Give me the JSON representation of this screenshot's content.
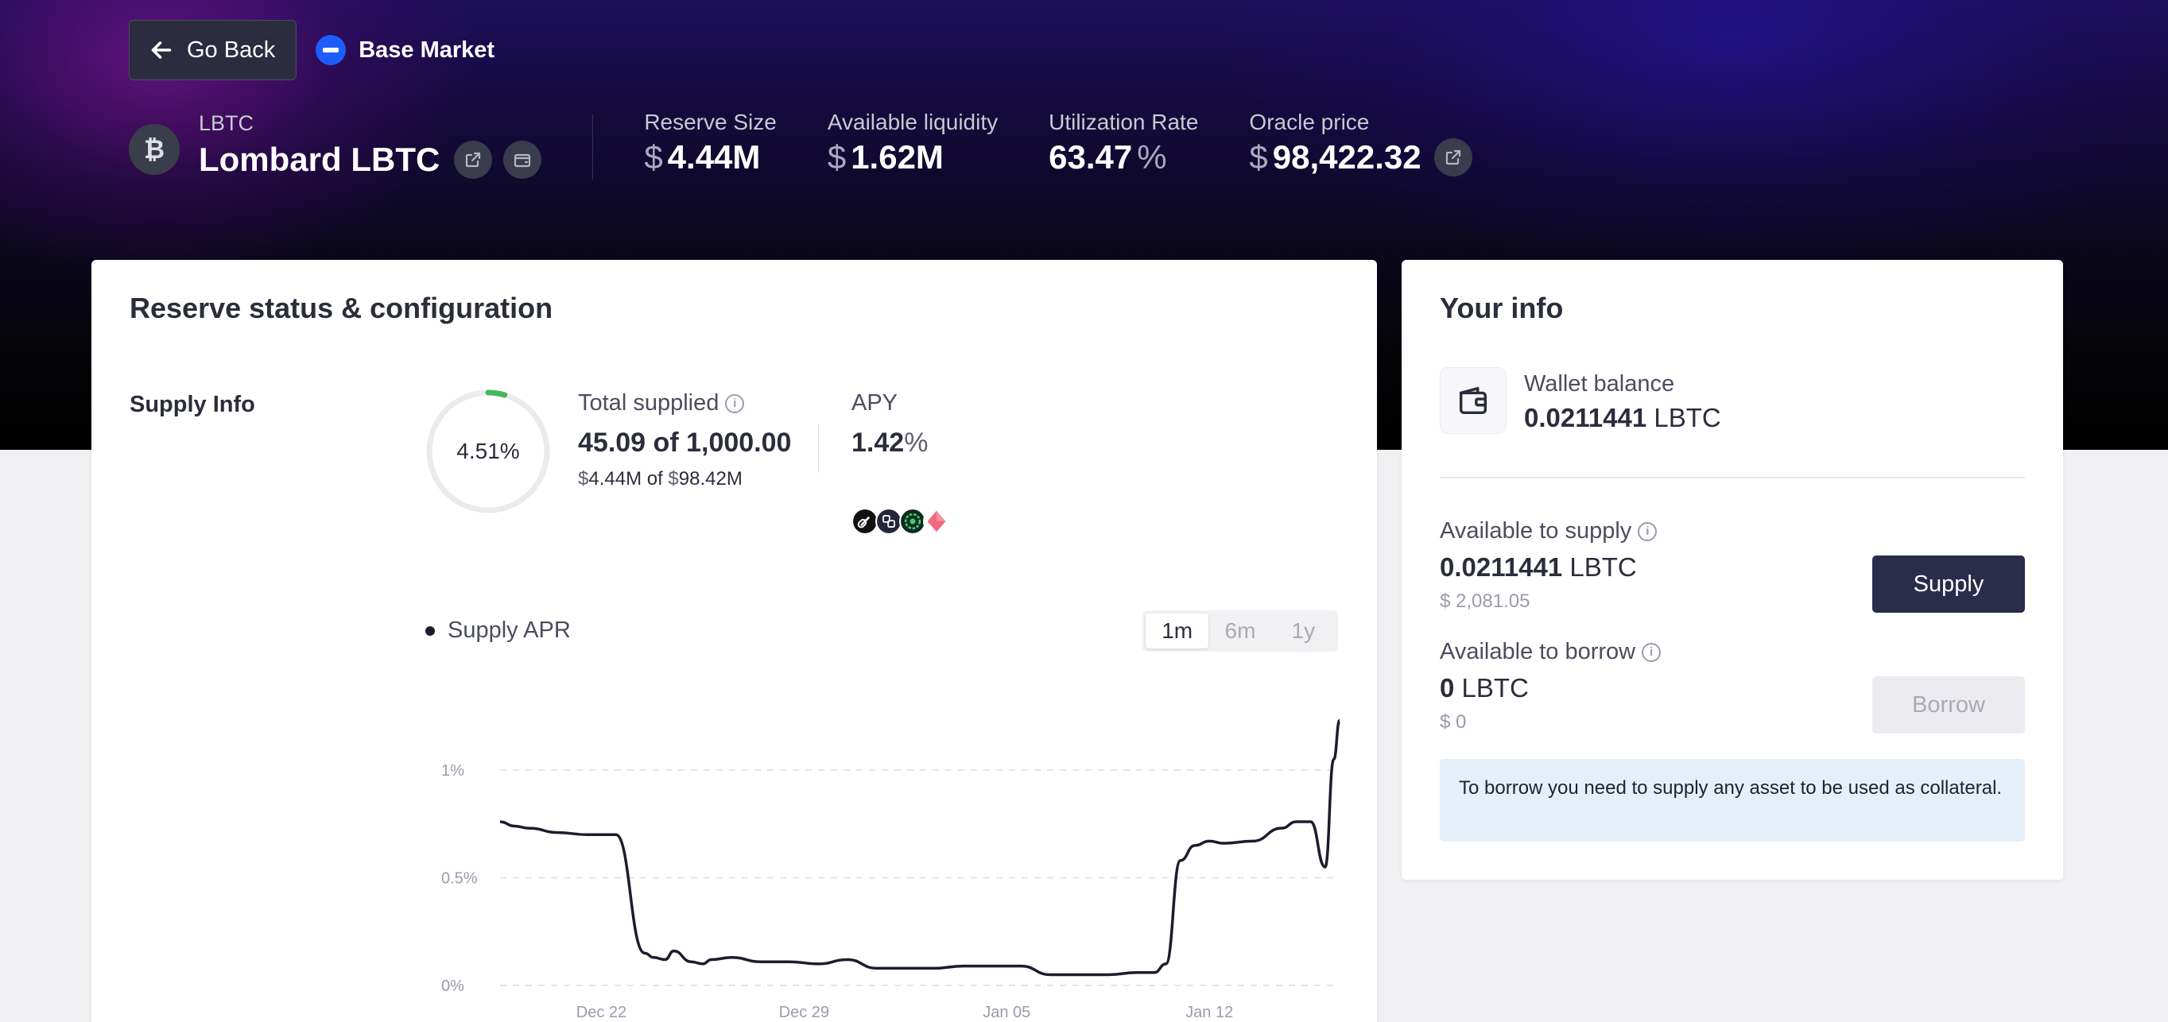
{
  "nav": {
    "go_back_label": "Go Back",
    "market_name": "Base Market"
  },
  "asset": {
    "symbol": "LBTC",
    "name": "Lombard LBTC"
  },
  "stats": {
    "reserve_size": {
      "label": "Reserve Size",
      "currency": "$",
      "value": "4.44M"
    },
    "available_liquidity": {
      "label": "Available liquidity",
      "currency": "$",
      "value": "1.62M"
    },
    "utilization_rate": {
      "label": "Utilization Rate",
      "value": "63.47",
      "unit": "%"
    },
    "oracle_price": {
      "label": "Oracle price",
      "currency": "$",
      "value": "98,422.32"
    }
  },
  "reserve": {
    "title": "Reserve status & configuration",
    "supply_info_label": "Supply Info",
    "donut_percent_text": "4.51%",
    "donut_fraction": 0.0451,
    "total_supplied_label": "Total supplied",
    "total_supplied_amount": "45.09",
    "total_supplied_of": "of",
    "total_supplied_cap": "1,000.00",
    "supplied_usd_currency": "$",
    "supplied_usd": "4.44M",
    "supplied_usd_of": "of",
    "cap_usd_currency": "$",
    "cap_usd": "98.42M",
    "apy_label": "APY",
    "apy_value": "1.42",
    "apy_unit": "%",
    "incentive_icons": [
      "chain-link-icon",
      "lombard-icon",
      "green-token-icon",
      "diamond-token-icon"
    ]
  },
  "chart_controls": {
    "legend_label": "Supply APR",
    "ranges": [
      "1m",
      "6m",
      "1y"
    ],
    "active_range": "1m"
  },
  "chart_data": {
    "type": "line",
    "title": "",
    "series": [
      {
        "name": "Supply APR",
        "x": [
          0,
          0.5,
          1,
          2,
          3,
          4,
          5,
          5.3,
          5.7,
          6,
          6.6,
          7,
          7.3,
          8,
          9,
          10,
          11,
          12,
          13,
          14,
          15,
          16,
          17,
          18,
          19,
          20,
          21,
          22,
          22.6,
          23,
          23.5,
          24,
          24.5,
          25,
          26,
          27,
          27.5,
          28,
          28.5,
          28.8,
          29
        ],
        "values": [
          0.76,
          0.74,
          0.73,
          0.71,
          0.7,
          0.7,
          0.15,
          0.13,
          0.12,
          0.16,
          0.11,
          0.1,
          0.12,
          0.13,
          0.11,
          0.11,
          0.1,
          0.12,
          0.08,
          0.08,
          0.08,
          0.09,
          0.09,
          0.09,
          0.05,
          0.05,
          0.05,
          0.06,
          0.06,
          0.1,
          0.58,
          0.65,
          0.67,
          0.66,
          0.67,
          0.73,
          0.76,
          0.76,
          0.55,
          1.05,
          1.23
        ]
      }
    ],
    "x_ticks": [
      {
        "x": 3.5,
        "label": "Dec 22"
      },
      {
        "x": 10.5,
        "label": "Dec 29"
      },
      {
        "x": 17.5,
        "label": "Jan 05"
      },
      {
        "x": 24.5,
        "label": "Jan 12"
      }
    ],
    "y_ticks": [
      {
        "y": 0,
        "label": "0%"
      },
      {
        "y": 0.5,
        "label": "0.5%"
      },
      {
        "y": 1,
        "label": "1%"
      }
    ],
    "xlim": [
      0,
      29
    ],
    "ylim": [
      0,
      1
    ],
    "xlabel": "",
    "ylabel": "",
    "grid": true
  },
  "your_info": {
    "title": "Your info",
    "wallet_label": "Wallet balance",
    "wallet_amount": "0.0211441",
    "wallet_symbol": "LBTC",
    "supply_label": "Available to supply",
    "supply_amount": "0.0211441",
    "supply_symbol": "LBTC",
    "supply_usd": "$ 2,081.05",
    "supply_button": "Supply",
    "borrow_label": "Available to borrow",
    "borrow_amount": "0",
    "borrow_symbol": "LBTC",
    "borrow_usd": "$ 0",
    "borrow_button": "Borrow",
    "alert_text": "To borrow you need to supply any asset to be used as collateral."
  },
  "colors": {
    "accent_dark": "#2b2c4a",
    "donut_green": "#46b85c",
    "alert_bg": "#e5eff8",
    "line": "#1b1d2e"
  }
}
